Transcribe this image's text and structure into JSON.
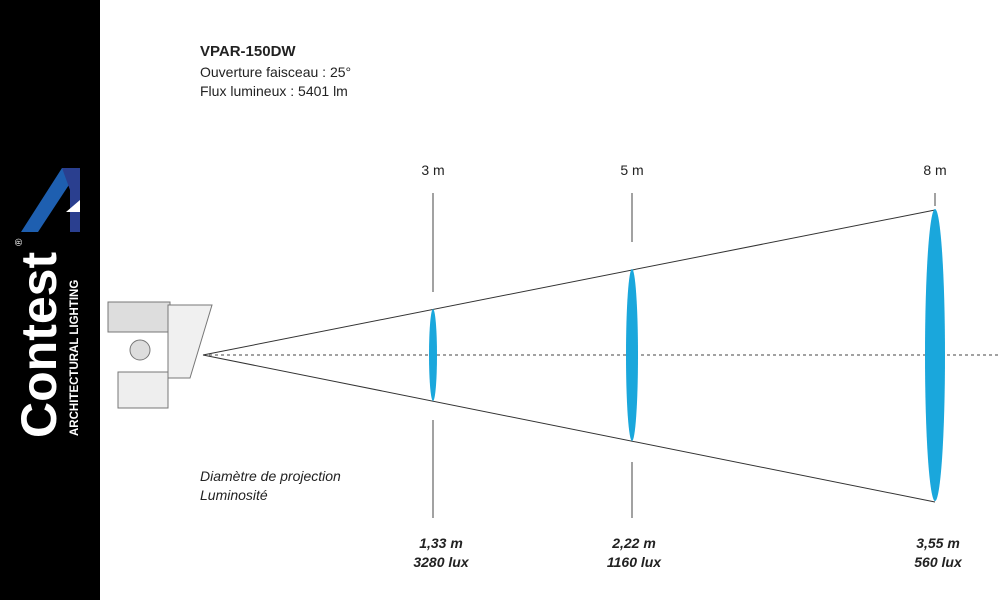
{
  "header": {
    "title": "VPAR-150DW",
    "lines": [
      "Ouverture faisceau : 25°",
      "Flux lumineux : 5401 lm"
    ]
  },
  "brand": {
    "name": "Contest",
    "mark": "®",
    "tagline": "ARCHITECTURAL LIGHTING"
  },
  "legend": [
    "Diamètre de projection",
    "Luminosité"
  ],
  "measures": [
    {
      "distance": "3 m",
      "diameter": "1,33 m",
      "illuminance": "3280 lux"
    },
    {
      "distance": "5 m",
      "diameter": "2,22 m",
      "illuminance": "1160 lux"
    },
    {
      "distance": "8 m",
      "diameter": "3,55 m",
      "illuminance": "560 lux"
    }
  ]
}
